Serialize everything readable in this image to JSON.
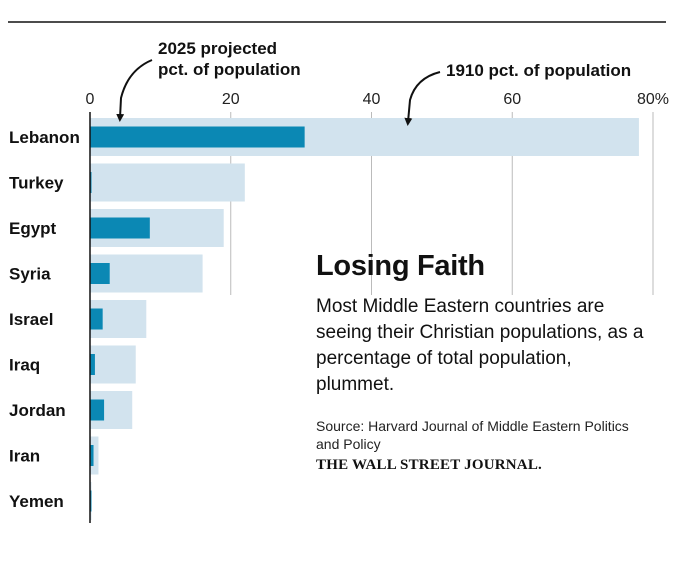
{
  "colors": {
    "bar_1910": "#d2e3ee",
    "bar_2025": "#0b88b4",
    "grid": "#bbbbbb",
    "rule": "#111111",
    "axis": "#111111"
  },
  "chart_data": {
    "type": "bar",
    "orientation": "horizontal",
    "title": "Losing Faith",
    "categories": [
      "Lebanon",
      "Turkey",
      "Egypt",
      "Syria",
      "Israel",
      "Iraq",
      "Jordan",
      "Iran",
      "Yemen"
    ],
    "series": [
      {
        "name": "1910 pct. of population",
        "values": [
          78,
          22,
          19,
          16,
          8,
          6.5,
          6,
          1.2,
          0.2
        ]
      },
      {
        "name": "2025 projected pct. of population",
        "values": [
          30.5,
          0.2,
          8.5,
          2.8,
          1.8,
          0.7,
          2,
          0.5,
          0.1
        ]
      }
    ],
    "x_ticks": [
      "0",
      "20",
      "40",
      "60",
      "80%"
    ],
    "x_tick_values": [
      0,
      20,
      40,
      60,
      80
    ],
    "xlim": [
      0,
      80
    ],
    "grid": true,
    "legend": [
      {
        "label_lines": [
          "2025 projected",
          "pct. of population"
        ],
        "series": "2025 projected pct. of population",
        "placement": "top-left"
      },
      {
        "label_lines": [
          "1910 pct. of population"
        ],
        "series": "1910 pct. of population",
        "placement": "top-right"
      }
    ]
  },
  "text": {
    "headline": "Losing Faith",
    "dek": "Most Middle Eastern countries are seeing their Christian populations, as a percentage of total population, plummet.",
    "source": "Source: Harvard Journal of Middle Eastern Politics and Policy",
    "publisher": "THE WALL STREET JOURNAL."
  }
}
